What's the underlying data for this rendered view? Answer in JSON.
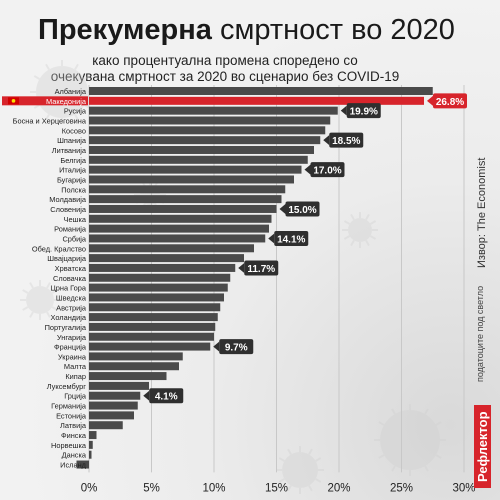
{
  "header": {
    "title_bold": "Прекумерна",
    "title_rest": "смртност во 2020",
    "subtitle_line1": "како процентуална промена споредено со",
    "subtitle_line2": "очекувана смртност за 2020 во сценарио без COVID-19"
  },
  "side": {
    "source": "Извор: The Economist",
    "brand": "Рефлектор",
    "brand_sub": "податоците под светло"
  },
  "colors": {
    "bar": "#4a4a4a",
    "highlight": "#d7242b",
    "label_bg": "#2f2f2f",
    "background": "#ececec"
  },
  "icons": {
    "flag": "north-macedonia-flag-icon",
    "background_decoration": "virus-icon"
  },
  "chart_data": {
    "type": "bar",
    "orientation": "horizontal",
    "title": "Прекумерна смртност во 2020",
    "categories": [
      "Албанија",
      "Македонија",
      "Русија",
      "Босна и Херцеговина",
      "Косово",
      "Шпанија",
      "Литванија",
      "Белгија",
      "Италија",
      "Бугарија",
      "Полска",
      "Молдавија",
      "Словенија",
      "Чешка",
      "Романија",
      "Србија",
      "Обед. Кралство",
      "Швајцарија",
      "Хрватска",
      "Словачка",
      "Црна Гора",
      "Шведска",
      "Австрија",
      "Холандија",
      "Португалија",
      "Унгарија",
      "Франција",
      "Украина",
      "Малта",
      "Кипар",
      "Луксембург",
      "Грција",
      "Германија",
      "Естонија",
      "Латвија",
      "Финска",
      "Норвешка",
      "Данска",
      "Исланд"
    ],
    "values": [
      27.5,
      26.8,
      19.9,
      19.3,
      18.9,
      18.5,
      18.0,
      17.5,
      17.0,
      16.4,
      15.7,
      15.4,
      15.0,
      14.6,
      14.4,
      14.1,
      13.2,
      12.4,
      11.7,
      11.3,
      11.1,
      10.8,
      10.5,
      10.3,
      10.1,
      10.0,
      9.7,
      7.5,
      7.2,
      6.2,
      4.8,
      4.1,
      3.9,
      3.6,
      2.7,
      0.6,
      0.3,
      0.2,
      -1.0
    ],
    "highlight": "Македонија",
    "value_labels": {
      "Македонија": "26.8%",
      "Русија": "19.9%",
      "Шпанија": "18.5%",
      "Италија": "17.0%",
      "Словенија": "15.0%",
      "Србија": "14.1%",
      "Хрватска": "11.7%",
      "Франција": "9.7%",
      "Грција": "4.1%"
    },
    "xlim": [
      -1,
      30
    ],
    "xticks": [
      "0%",
      "5%",
      "10%",
      "15%",
      "20%",
      "25%",
      "30%"
    ],
    "grid": true
  }
}
